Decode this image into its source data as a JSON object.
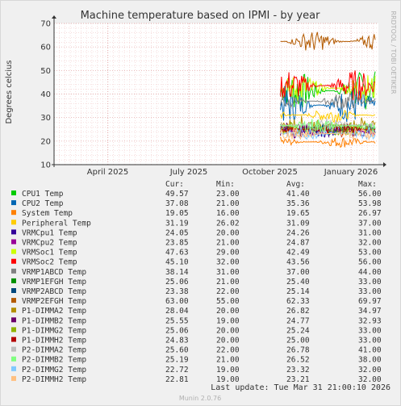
{
  "chart_data": {
    "type": "line",
    "title": "Machine temperature based on IPMI - by year",
    "ylabel": "Degrees celcius",
    "xlabel": "",
    "side_label": "RRDTOOL / TOBI OETIKER",
    "ylim": [
      10,
      70
    ],
    "y_ticks": [
      "10",
      "20",
      "30",
      "40",
      "50",
      "60",
      "70"
    ],
    "x_ticks": [
      "April 2025",
      "July 2025",
      "October 2025",
      "January 2026"
    ],
    "x_tick_values": [
      0.25,
      0.5,
      0.75,
      1.0
    ],
    "data_start": 0.708,
    "grid": true,
    "legend_header": {
      "cur": "Cur:",
      "min": "Min:",
      "avg": "Avg:",
      "max": "Max:"
    },
    "series": [
      {
        "name": "CPU1 Temp",
        "color": "#00cc00",
        "cur": "49.57",
        "min": "23.00",
        "avg": "41.40",
        "max": "56.00"
      },
      {
        "name": "CPU2 Temp",
        "color": "#0066b3",
        "cur": "37.08",
        "min": "21.00",
        "avg": "35.36",
        "max": "53.98"
      },
      {
        "name": "System Temp",
        "color": "#ff8000",
        "cur": "19.05",
        "min": "16.00",
        "avg": "19.65",
        "max": "26.97"
      },
      {
        "name": "Peripheral Temp",
        "color": "#ffcc00",
        "cur": "31.19",
        "min": "26.02",
        "avg": "31.09",
        "max": "37.00"
      },
      {
        "name": "VRMCpu1 Temp",
        "color": "#330099",
        "cur": "24.05",
        "min": "20.00",
        "avg": "24.26",
        "max": "31.00"
      },
      {
        "name": "VRMCpu2 Temp",
        "color": "#990099",
        "cur": "23.85",
        "min": "21.00",
        "avg": "24.87",
        "max": "32.00"
      },
      {
        "name": "VRMSoc1 Temp",
        "color": "#ccff00",
        "cur": "47.63",
        "min": "29.00",
        "avg": "42.49",
        "max": "53.00"
      },
      {
        "name": "VRMSoc2 Temp",
        "color": "#ff0000",
        "cur": "45.10",
        "min": "32.00",
        "avg": "43.56",
        "max": "56.00"
      },
      {
        "name": "VRMP1ABCD Temp",
        "color": "#808080",
        "cur": "38.14",
        "min": "31.00",
        "avg": "37.00",
        "max": "44.00"
      },
      {
        "name": "VRMP1EFGH Temp",
        "color": "#008f00",
        "cur": "25.06",
        "min": "21.00",
        "avg": "25.40",
        "max": "33.00"
      },
      {
        "name": "VRMP2ABCD Temp",
        "color": "#00487d",
        "cur": "23.38",
        "min": "22.00",
        "avg": "25.14",
        "max": "33.00"
      },
      {
        "name": "VRMP2EFGH Temp",
        "color": "#b35a00",
        "cur": "63.00",
        "min": "55.00",
        "avg": "62.33",
        "max": "69.97"
      },
      {
        "name": "P1-DIMMA2 Temp",
        "color": "#b38f00",
        "cur": "28.04",
        "min": "20.00",
        "avg": "26.82",
        "max": "34.97"
      },
      {
        "name": "P1-DIMMB2 Temp",
        "color": "#6b006b",
        "cur": "25.55",
        "min": "19.00",
        "avg": "24.77",
        "max": "32.93"
      },
      {
        "name": "P1-DIMMG2 Temp",
        "color": "#8fb300",
        "cur": "25.06",
        "min": "20.00",
        "avg": "25.24",
        "max": "33.00"
      },
      {
        "name": "P1-DIMMH2 Temp",
        "color": "#b30000",
        "cur": "24.83",
        "min": "20.00",
        "avg": "25.00",
        "max": "33.00"
      },
      {
        "name": "P2-DIMMA2 Temp",
        "color": "#bebebe",
        "cur": "25.60",
        "min": "22.00",
        "avg": "26.78",
        "max": "41.00"
      },
      {
        "name": "P2-DIMMB2 Temp",
        "color": "#80ff80",
        "cur": "25.19",
        "min": "21.00",
        "avg": "26.52",
        "max": "38.00"
      },
      {
        "name": "P2-DIMMG2 Temp",
        "color": "#80c9ff",
        "cur": "22.72",
        "min": "19.00",
        "avg": "23.32",
        "max": "32.00"
      },
      {
        "name": "P2-DIMMH2 Temp",
        "color": "#ffc080",
        "cur": "22.81",
        "min": "19.00",
        "avg": "23.21",
        "max": "32.00"
      }
    ],
    "last_update": "Last update: Tue Mar 31 21:00:10 2026",
    "footer": "Munin 2.0.76"
  }
}
